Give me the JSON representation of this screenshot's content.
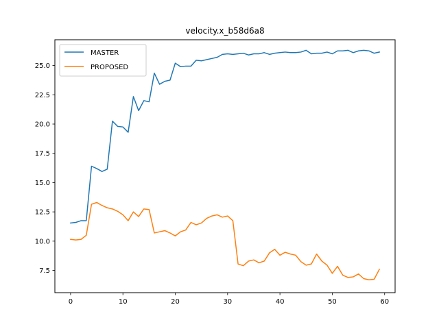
{
  "chart_data": {
    "type": "line",
    "title": "velocity.x_b58d6a8",
    "xlabel": "",
    "ylabel": "",
    "xlim": [
      -3,
      62
    ],
    "ylim": [
      5.6,
      27.2
    ],
    "xticks": [
      0,
      10,
      20,
      30,
      40,
      50,
      60
    ],
    "xtick_labels": [
      "0",
      "10",
      "20",
      "30",
      "40",
      "50",
      "60"
    ],
    "yticks": [
      7.5,
      10.0,
      12.5,
      15.0,
      17.5,
      20.0,
      22.5,
      25.0
    ],
    "ytick_labels": [
      "7.5",
      "10.0",
      "12.5",
      "15.0",
      "17.5",
      "20.0",
      "22.5",
      "25.0"
    ],
    "grid": false,
    "legend": "top-left",
    "x": [
      0,
      1,
      2,
      3,
      4,
      5,
      6,
      7,
      8,
      9,
      10,
      11,
      12,
      13,
      14,
      15,
      16,
      17,
      18,
      19,
      20,
      21,
      22,
      23,
      24,
      25,
      26,
      27,
      28,
      29,
      30,
      31,
      32,
      33,
      34,
      35,
      36,
      37,
      38,
      39,
      40,
      41,
      42,
      43,
      44,
      45,
      46,
      47,
      48,
      49,
      50,
      51,
      52,
      53,
      54,
      55,
      56,
      57,
      58,
      59
    ],
    "series": [
      {
        "name": "MASTER",
        "color": "#1f77b4",
        "values": [
          11.55,
          11.6,
          11.75,
          11.75,
          16.4,
          16.2,
          15.95,
          16.15,
          20.25,
          19.8,
          19.75,
          19.3,
          22.35,
          21.15,
          22.0,
          21.9,
          24.35,
          23.4,
          23.65,
          23.75,
          25.2,
          24.9,
          24.95,
          24.95,
          25.45,
          25.4,
          25.5,
          25.6,
          25.7,
          25.95,
          26.0,
          25.95,
          26.0,
          26.05,
          25.9,
          26.0,
          26.0,
          26.1,
          25.95,
          26.05,
          26.1,
          26.15,
          26.1,
          26.1,
          26.15,
          26.3,
          26.0,
          26.05,
          26.05,
          26.15,
          26.0,
          26.25,
          26.25,
          26.3,
          26.1,
          26.25,
          26.3,
          26.25,
          26.05,
          26.15
        ]
      },
      {
        "name": "PROPOSED",
        "color": "#ff7f0e",
        "values": [
          10.15,
          10.1,
          10.15,
          10.5,
          13.15,
          13.3,
          13.05,
          12.85,
          12.75,
          12.55,
          12.25,
          11.75,
          12.5,
          12.1,
          12.75,
          12.7,
          10.7,
          10.8,
          10.9,
          10.7,
          10.45,
          10.8,
          10.95,
          11.6,
          11.4,
          11.55,
          11.95,
          12.15,
          12.25,
          12.05,
          12.15,
          11.75,
          8.05,
          7.9,
          8.3,
          8.4,
          8.15,
          8.3,
          9.0,
          9.3,
          8.8,
          9.05,
          8.9,
          8.8,
          8.25,
          7.95,
          8.05,
          8.9,
          8.3,
          7.95,
          7.25,
          7.85,
          7.1,
          6.9,
          6.95,
          7.2,
          6.8,
          6.7,
          6.75,
          7.6
        ]
      }
    ]
  }
}
